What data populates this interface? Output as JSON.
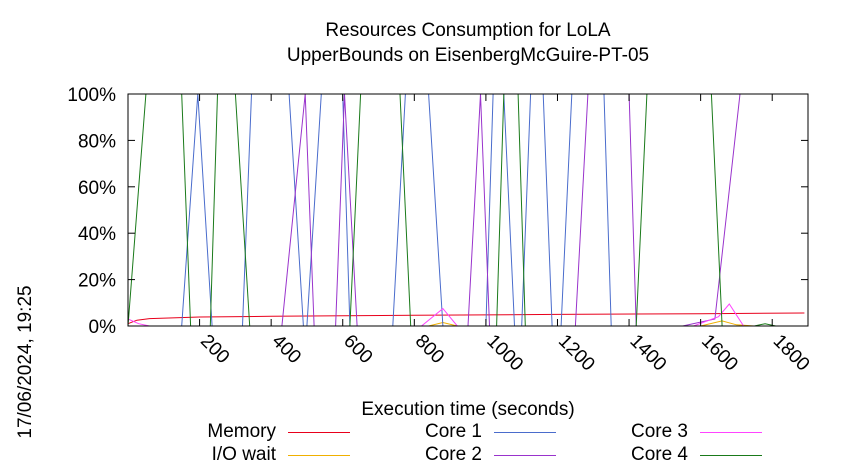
{
  "chart_data": {
    "type": "line",
    "title": "Resources Consumption for LoLA",
    "subtitle": "UpperBounds on EisenbergMcGuire-PT-05",
    "xlabel": "Execution time (seconds)",
    "ylabel": "",
    "side_label": "17/06/2024, 19:25",
    "xlim": [
      0,
      1900
    ],
    "ylim": [
      0,
      100
    ],
    "x_ticks": [
      200,
      400,
      600,
      800,
      1000,
      1200,
      1400,
      1600,
      1800
    ],
    "y_ticks": [
      0,
      20,
      40,
      60,
      80,
      100
    ],
    "y_tick_labels": [
      "0%",
      "20%",
      "40%",
      "60%",
      "80%",
      "100%"
    ],
    "grid": false,
    "legend_position": "bottom",
    "series": [
      {
        "name": "Memory",
        "color": "#e8001b",
        "points": [
          [
            0,
            1
          ],
          [
            25,
            2.5
          ],
          [
            60,
            3.2
          ],
          [
            200,
            3.9
          ],
          [
            400,
            4.2
          ],
          [
            800,
            4.6
          ],
          [
            1200,
            5.0
          ],
          [
            1600,
            5.3
          ],
          [
            1890,
            5.6
          ]
        ]
      },
      {
        "name": "I/O wait",
        "color": "#f0b000",
        "points": [
          [
            0,
            0
          ],
          [
            840,
            0
          ],
          [
            880,
            1.5
          ],
          [
            920,
            0
          ],
          [
            1600,
            0
          ],
          [
            1660,
            2.2
          ],
          [
            1700,
            0.5
          ],
          [
            1750,
            0
          ],
          [
            1890,
            0
          ]
        ]
      },
      {
        "name": "Core 1",
        "color": "#4a6ccc",
        "points": [
          [
            0,
            0
          ],
          [
            150,
            0
          ],
          [
            195,
            100
          ],
          [
            235,
            0
          ],
          [
            320,
            0
          ],
          [
            345,
            100
          ],
          [
            450,
            100
          ],
          [
            490,
            0
          ],
          [
            500,
            0
          ],
          [
            540,
            100
          ],
          [
            600,
            100
          ],
          [
            620,
            0
          ],
          [
            740,
            0
          ],
          [
            775,
            100
          ],
          [
            840,
            100
          ],
          [
            880,
            0
          ],
          [
            1000,
            0
          ],
          [
            1020,
            100
          ],
          [
            1050,
            100
          ],
          [
            1080,
            0
          ],
          [
            1100,
            0
          ],
          [
            1125,
            100
          ],
          [
            1160,
            100
          ],
          [
            1185,
            0
          ],
          [
            1210,
            0
          ],
          [
            1240,
            100
          ],
          [
            1330,
            100
          ],
          [
            1350,
            0
          ],
          [
            1890,
            0
          ]
        ]
      },
      {
        "name": "Core 2",
        "color": "#9933cc",
        "points": [
          [
            0,
            0
          ],
          [
            430,
            0
          ],
          [
            495,
            100
          ],
          [
            520,
            0
          ],
          [
            580,
            0
          ],
          [
            605,
            100
          ],
          [
            640,
            0
          ],
          [
            950,
            0
          ],
          [
            985,
            100
          ],
          [
            1010,
            0
          ],
          [
            1250,
            0
          ],
          [
            1285,
            100
          ],
          [
            1400,
            100
          ],
          [
            1420,
            0
          ],
          [
            1550,
            0
          ],
          [
            1640,
            3
          ],
          [
            1710,
            100
          ],
          [
            1890,
            100
          ]
        ]
      },
      {
        "name": "Core 3",
        "color": "#ff44ff",
        "points": [
          [
            0,
            3
          ],
          [
            30,
            1
          ],
          [
            60,
            0
          ],
          [
            820,
            0
          ],
          [
            880,
            7.5
          ],
          [
            920,
            0
          ],
          [
            1580,
            0
          ],
          [
            1650,
            4
          ],
          [
            1680,
            9.5
          ],
          [
            1720,
            0
          ],
          [
            1890,
            0
          ]
        ]
      },
      {
        "name": "Core 4",
        "color": "#1a7a1a",
        "points": [
          [
            0,
            0
          ],
          [
            50,
            100
          ],
          [
            150,
            100
          ],
          [
            175,
            0
          ],
          [
            230,
            0
          ],
          [
            250,
            100
          ],
          [
            300,
            100
          ],
          [
            340,
            0
          ],
          [
            620,
            0
          ],
          [
            650,
            100
          ],
          [
            760,
            100
          ],
          [
            790,
            0
          ],
          [
            1030,
            0
          ],
          [
            1050,
            100
          ],
          [
            1090,
            100
          ],
          [
            1110,
            0
          ],
          [
            1420,
            0
          ],
          [
            1450,
            100
          ],
          [
            1630,
            100
          ],
          [
            1660,
            0
          ],
          [
            1750,
            0
          ],
          [
            1780,
            1
          ],
          [
            1810,
            0
          ],
          [
            1890,
            0
          ]
        ]
      }
    ]
  }
}
